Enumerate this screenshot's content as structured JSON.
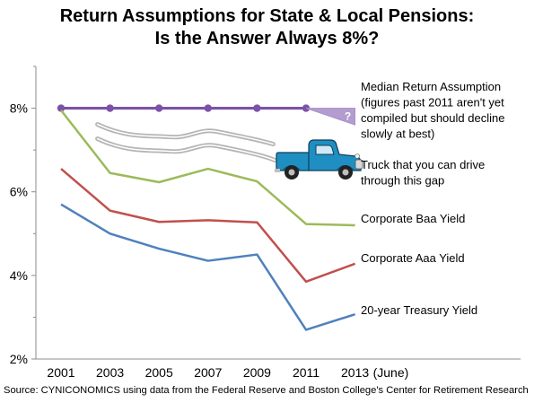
{
  "chart_data": {
    "type": "line",
    "title_line1": "Return Assumptions for State & Local Pensions:",
    "title_line2": "Is the Answer Always 8%?",
    "x": [
      "2001",
      "2003",
      "2005",
      "2007",
      "2009",
      "2011",
      "2013"
    ],
    "x_tick_labels": [
      "2001",
      "2003",
      "2005",
      "2007",
      "2009",
      "2011",
      "2013"
    ],
    "x_last_suffix": "(June)",
    "y_tick_labels": [
      "2%",
      "4%",
      "6%",
      "8%"
    ],
    "y_ticks": [
      2,
      4,
      6,
      8
    ],
    "ylim": [
      2,
      9
    ],
    "xlabel": "",
    "ylabel": "",
    "grid": false,
    "series": [
      {
        "name": "Median Return Assumption",
        "label_lines": [
          "Median Return Assumption",
          "(figures past 2011 aren't yet",
          "compiled but should decline",
          "slowly at best)"
        ],
        "color": "#7b52a8",
        "values": [
          8.0,
          8.0,
          8.0,
          8.0,
          8.0,
          8.0,
          null
        ],
        "markers": true,
        "projection_marker": "?"
      },
      {
        "name": "Corporate Baa Yield",
        "label_lines": [
          "Corporate Baa Yield"
        ],
        "color": "#9bbb59",
        "values": [
          7.95,
          6.45,
          6.23,
          6.55,
          6.25,
          5.23,
          5.2
        ]
      },
      {
        "name": "Corporate Aaa Yield",
        "label_lines": [
          "Corporate Aaa Yield"
        ],
        "color": "#c0504d",
        "values": [
          6.55,
          5.55,
          5.28,
          5.32,
          5.27,
          3.85,
          4.28
        ]
      },
      {
        "name": "20-year Treasury Yield",
        "label_lines": [
          "20-year Treasury Yield"
        ],
        "color": "#4f81bd",
        "values": [
          5.7,
          5.0,
          4.64,
          4.35,
          4.5,
          2.7,
          3.07
        ]
      }
    ],
    "annotation": {
      "label_lines": [
        "Truck that you can drive",
        "through this gap"
      ],
      "icon": "pickup-truck-icon",
      "truck_color": "#1f8fc2"
    }
  },
  "source": "Source: CYNICONOMICS using data from the Federal Reserve and Boston College's Center for Retirement Research"
}
